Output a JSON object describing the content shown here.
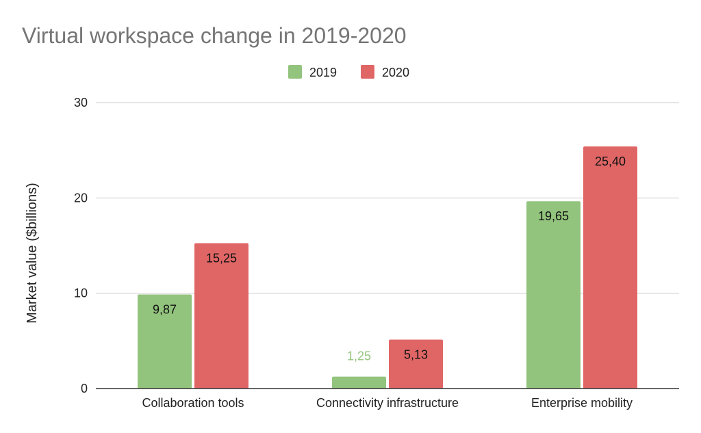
{
  "chart_data": {
    "type": "bar",
    "title": "Virtual workspace change in 2019-2020",
    "xlabel": "",
    "ylabel": "Market value ($billions)",
    "ylim": [
      0,
      30
    ],
    "yticks": [
      0,
      10,
      20,
      30
    ],
    "grid": true,
    "legend_position": "top",
    "categories": [
      "Collaboration tools",
      "Connectivity infrastructure",
      "Enterprise mobility"
    ],
    "series": [
      {
        "name": "2019",
        "color": "#93c47d",
        "values": [
          9.87,
          1.25,
          19.65
        ],
        "labels": [
          "9,87",
          "1,25",
          "19,65"
        ]
      },
      {
        "name": "2020",
        "color": "#e06666",
        "values": [
          15.25,
          5.13,
          25.4
        ],
        "labels": [
          "15,25",
          "5,13",
          "25,40"
        ]
      }
    ]
  }
}
